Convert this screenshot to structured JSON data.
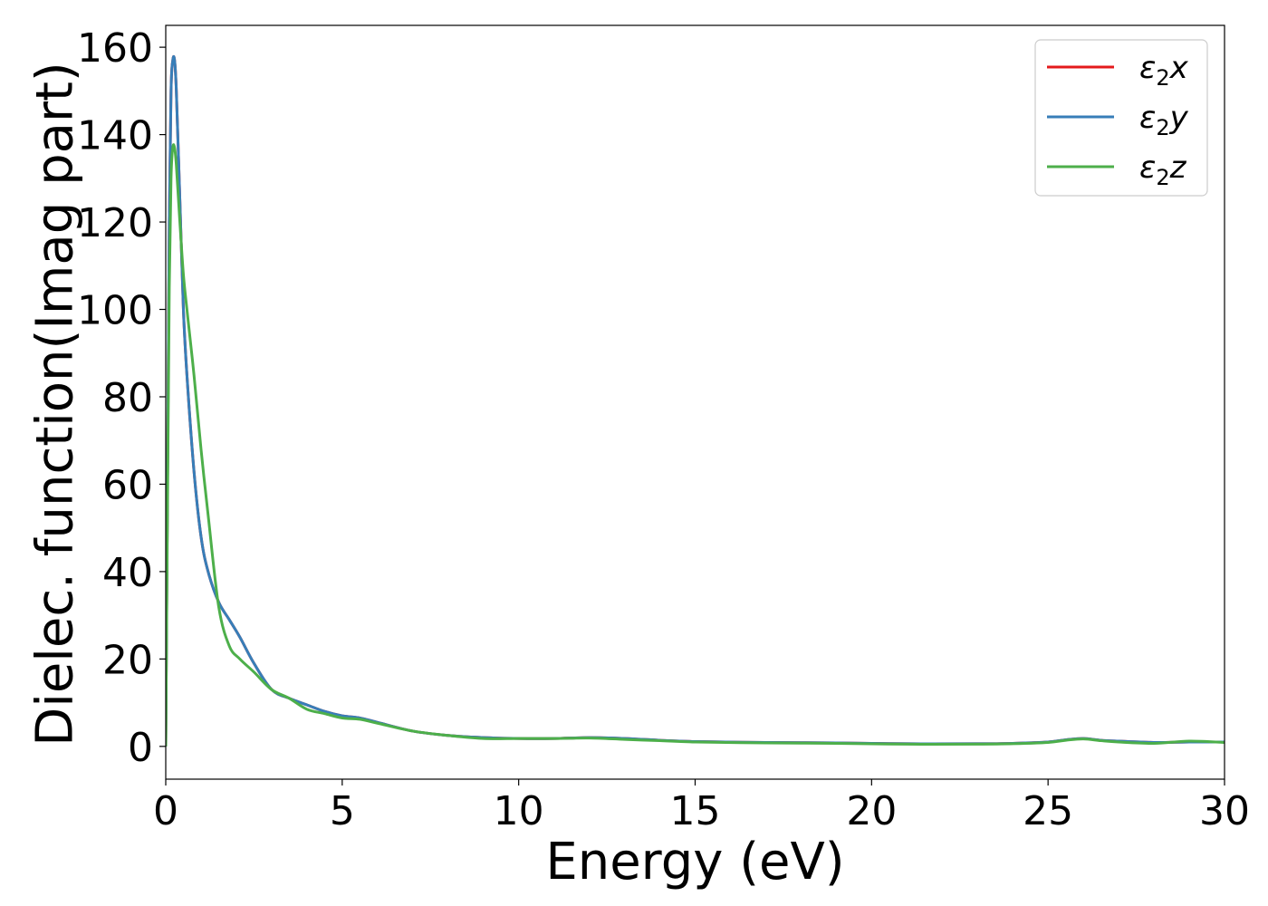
{
  "chart_data": {
    "type": "line",
    "xlabel": "Energy (eV)",
    "ylabel": "Dielec. function(Imag part)",
    "xlim": [
      0,
      30
    ],
    "ylim": [
      -7.5,
      165
    ],
    "xticks": [
      0,
      5,
      10,
      15,
      20,
      25,
      30
    ],
    "yticks": [
      0,
      20,
      40,
      60,
      80,
      100,
      120,
      140,
      160
    ],
    "legend_position": "top-right",
    "grid": false,
    "series": [
      {
        "name": "ε₂x",
        "legend_base": "ε",
        "legend_sub": "2",
        "legend_var": "x",
        "color": "#e41a1c",
        "x": [
          0,
          0.05,
          0.1,
          0.15,
          0.2,
          0.25,
          0.3,
          0.4,
          0.5,
          0.6,
          0.8,
          1.0,
          1.2,
          1.5,
          1.8,
          2.1,
          2.5,
          3.0,
          3.5,
          4.0,
          4.5,
          5.0,
          5.5,
          6.0,
          7.0,
          8.0,
          9.0,
          10.0,
          11.0,
          12.0,
          13.0,
          14.0,
          15.0,
          17.0,
          19.0,
          21.0,
          23.0,
          24.0,
          25.0,
          25.5,
          26.0,
          26.5,
          27.0,
          28.0,
          29.0,
          30.0
        ],
        "y": [
          0,
          60,
          120,
          150,
          157,
          157,
          150,
          125,
          100,
          85,
          63,
          48,
          40,
          33,
          29,
          25,
          19,
          13,
          11,
          9.5,
          8,
          7,
          6.5,
          5.5,
          3.5,
          2.5,
          2,
          1.8,
          1.8,
          2,
          1.8,
          1.4,
          1.1,
          0.9,
          0.8,
          0.6,
          0.6,
          0.7,
          1.0,
          1.5,
          1.8,
          1.4,
          1.2,
          0.9,
          1.0,
          1.0
        ]
      },
      {
        "name": "ε₂y",
        "legend_base": "ε",
        "legend_sub": "2",
        "legend_var": "y",
        "color": "#377eb8",
        "x": [
          0,
          0.05,
          0.1,
          0.15,
          0.2,
          0.25,
          0.3,
          0.4,
          0.5,
          0.6,
          0.8,
          1.0,
          1.2,
          1.5,
          1.8,
          2.1,
          2.5,
          3.0,
          3.5,
          4.0,
          4.5,
          5.0,
          5.5,
          6.0,
          7.0,
          8.0,
          9.0,
          10.0,
          11.0,
          12.0,
          13.0,
          14.0,
          15.0,
          17.0,
          19.0,
          21.0,
          23.0,
          24.0,
          25.0,
          25.5,
          26.0,
          26.5,
          27.0,
          28.0,
          29.0,
          30.0
        ],
        "y": [
          0,
          60,
          120,
          150,
          157,
          157,
          150,
          125,
          100,
          85,
          63,
          48,
          40,
          33,
          29,
          25,
          19,
          13,
          11,
          9.5,
          8,
          7,
          6.5,
          5.5,
          3.5,
          2.5,
          2,
          1.8,
          1.8,
          2,
          1.8,
          1.4,
          1.1,
          0.9,
          0.8,
          0.6,
          0.6,
          0.7,
          1.0,
          1.5,
          1.8,
          1.4,
          1.2,
          0.9,
          1.0,
          1.0
        ]
      },
      {
        "name": "ε₂z",
        "legend_base": "ε",
        "legend_sub": "2",
        "legend_var": "z",
        "color": "#4daf4a",
        "x": [
          0,
          0.05,
          0.1,
          0.15,
          0.2,
          0.25,
          0.3,
          0.4,
          0.5,
          0.6,
          0.8,
          1.0,
          1.2,
          1.5,
          1.8,
          2.1,
          2.5,
          3.0,
          3.5,
          4.0,
          4.5,
          5.0,
          5.5,
          6.0,
          7.0,
          8.0,
          9.0,
          10.0,
          11.0,
          12.0,
          13.0,
          14.0,
          15.0,
          17.0,
          19.0,
          21.0,
          23.0,
          24.0,
          25.0,
          25.5,
          26.0,
          26.5,
          27.0,
          28.0,
          29.0,
          30.0
        ],
        "y": [
          0,
          55,
          105,
          130,
          137,
          137,
          133,
          120,
          108,
          100,
          85,
          68,
          53,
          32,
          23,
          20,
          17,
          13,
          11,
          8.5,
          7.5,
          6.5,
          6.2,
          5.3,
          3.5,
          2.5,
          1.8,
          1.8,
          1.8,
          1.9,
          1.6,
          1.3,
          1.0,
          0.8,
          0.7,
          0.5,
          0.5,
          0.6,
          0.9,
          1.4,
          1.7,
          1.3,
          1.0,
          0.7,
          1.2,
          0.9
        ]
      }
    ]
  }
}
